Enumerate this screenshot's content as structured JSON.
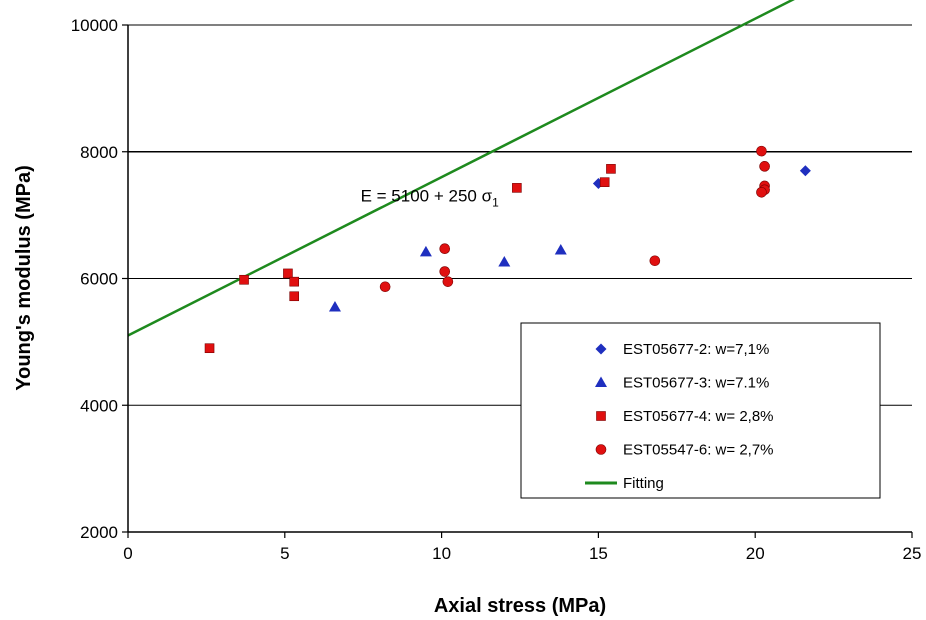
{
  "chart_data": {
    "type": "scatter",
    "xlabel": "Axial stress (MPa)",
    "ylabel": "Young's modulus (MPa)",
    "xlim": [
      0,
      25
    ],
    "ylim": [
      2000,
      10000
    ],
    "x_ticks": [
      0,
      5,
      10,
      15,
      20,
      25
    ],
    "y_ticks": [
      2000,
      4000,
      6000,
      8000,
      10000
    ],
    "grid": "horizontal",
    "annotation": {
      "text": "E = 5100 + 250 σ",
      "subscript": "1",
      "x": 7.8,
      "y": 7250
    },
    "legend": {
      "placement": "bottom-right",
      "entries": [
        {
          "name": "EST05677-2: w=7,1%",
          "marker": "diamond",
          "color": "#1f2fbf"
        },
        {
          "name": "EST05677-3: w=7.1%",
          "marker": "triangle",
          "color": "#1f2fbf"
        },
        {
          "name": "EST05677-4: w= 2,8%",
          "marker": "square",
          "color": "#e01010"
        },
        {
          "name": "EST05547-6: w= 2,7%",
          "marker": "circle",
          "color": "#e01010"
        },
        {
          "name": "Fitting",
          "marker": "line",
          "color": "#1e8a1e"
        }
      ]
    },
    "series": [
      {
        "name": "EST05677-2: w=7,1%",
        "marker": "diamond",
        "color": "#1f2fbf",
        "points": [
          [
            15.0,
            7500
          ],
          [
            21.6,
            7700
          ]
        ]
      },
      {
        "name": "EST05677-3: w=7.1%",
        "marker": "triangle",
        "color": "#1f2fbf",
        "points": [
          [
            6.6,
            5550
          ],
          [
            9.5,
            6420
          ],
          [
            12.0,
            6260
          ],
          [
            13.8,
            6450
          ]
        ]
      },
      {
        "name": "EST05677-4: w= 2,8%",
        "marker": "square",
        "color": "#e01010",
        "points": [
          [
            2.6,
            4900
          ],
          [
            3.7,
            5980
          ],
          [
            5.1,
            6080
          ],
          [
            5.3,
            5950
          ],
          [
            5.3,
            5720
          ],
          [
            12.4,
            7430
          ],
          [
            15.2,
            7520
          ],
          [
            15.4,
            7730
          ]
        ]
      },
      {
        "name": "EST05547-6: w= 2,7%",
        "marker": "circle",
        "color": "#e01010",
        "points": [
          [
            8.2,
            5870
          ],
          [
            10.1,
            6470
          ],
          [
            10.1,
            6110
          ],
          [
            10.2,
            5950
          ],
          [
            16.8,
            6280
          ],
          [
            20.2,
            8010
          ],
          [
            20.3,
            7770
          ],
          [
            20.3,
            7460
          ],
          [
            20.3,
            7400
          ],
          [
            20.2,
            7360
          ]
        ]
      },
      {
        "name": "Fitting",
        "marker": "line",
        "color": "#1e8a1e",
        "intercept": 5100,
        "slope": 250,
        "x_range": [
          0,
          25
        ]
      }
    ]
  }
}
